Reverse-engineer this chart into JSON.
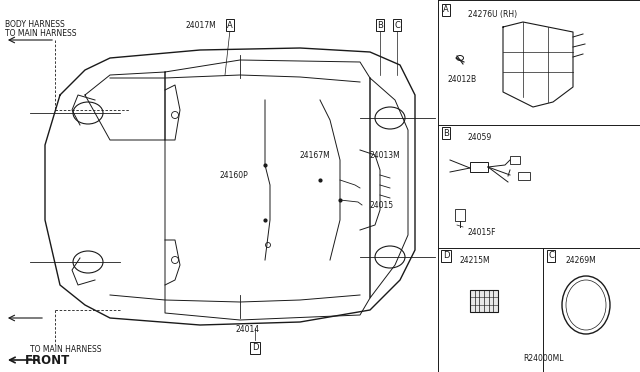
{
  "bg_color": "#ffffff",
  "line_color": "#1a1a1a",
  "gray": "#888888",
  "labels": {
    "body_harness_1": "BODY HARNESS",
    "body_harness_2": "TO MAIN HARNESS",
    "to_main_harness": "TO MAIN HARNESS",
    "front": "FRONT",
    "24017M": "24017M",
    "24013M": "24013M",
    "24160P": "24160P",
    "24167M": "24167M",
    "24015": "24015",
    "24014": "24014",
    "24215M": "24215M",
    "24276U": "24276U (RH)",
    "24012B": "24012B",
    "24059": "24059",
    "24015F": "24015F",
    "24269M": "24269M",
    "R24000ML": "R24000ML"
  }
}
